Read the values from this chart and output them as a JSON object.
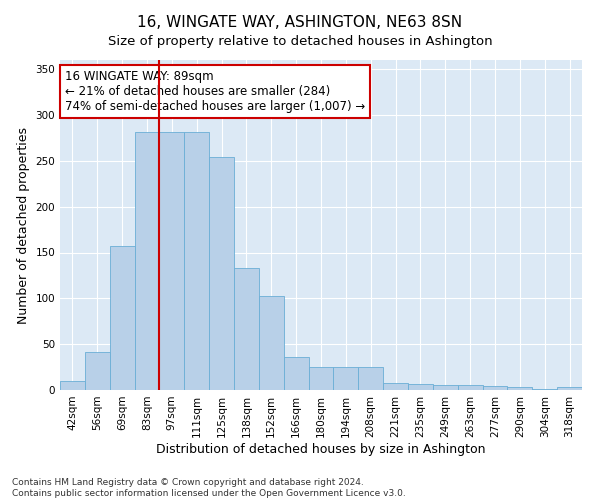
{
  "title": "16, WINGATE WAY, ASHINGTON, NE63 8SN",
  "subtitle": "Size of property relative to detached houses in Ashington",
  "xlabel": "Distribution of detached houses by size in Ashington",
  "ylabel": "Number of detached properties",
  "categories": [
    "42sqm",
    "56sqm",
    "69sqm",
    "83sqm",
    "97sqm",
    "111sqm",
    "125sqm",
    "138sqm",
    "152sqm",
    "166sqm",
    "180sqm",
    "194sqm",
    "208sqm",
    "221sqm",
    "235sqm",
    "249sqm",
    "263sqm",
    "277sqm",
    "290sqm",
    "304sqm",
    "318sqm"
  ],
  "values": [
    10,
    42,
    157,
    281,
    281,
    282,
    254,
    133,
    103,
    36,
    25,
    25,
    25,
    8,
    7,
    6,
    5,
    4,
    3,
    1,
    3
  ],
  "bar_color": "#b8d0e8",
  "bar_edgecolor": "#6aaed6",
  "fig_background": "#ffffff",
  "axes_background": "#dce9f5",
  "grid_color": "#ffffff",
  "annotation_text": "16 WINGATE WAY: 89sqm\n← 21% of detached houses are smaller (284)\n74% of semi-detached houses are larger (1,007) →",
  "annotation_box_facecolor": "#ffffff",
  "annotation_box_edgecolor": "#cc0000",
  "vline_color": "#cc0000",
  "vline_index": 3.5,
  "ylim": [
    0,
    360
  ],
  "yticks": [
    0,
    50,
    100,
    150,
    200,
    250,
    300,
    350
  ],
  "title_fontsize": 11,
  "xlabel_fontsize": 9,
  "ylabel_fontsize": 9,
  "tick_fontsize": 7.5,
  "annotation_fontsize": 8.5,
  "footer_text": "Contains HM Land Registry data © Crown copyright and database right 2024.\nContains public sector information licensed under the Open Government Licence v3.0.",
  "footer_fontsize": 6.5
}
